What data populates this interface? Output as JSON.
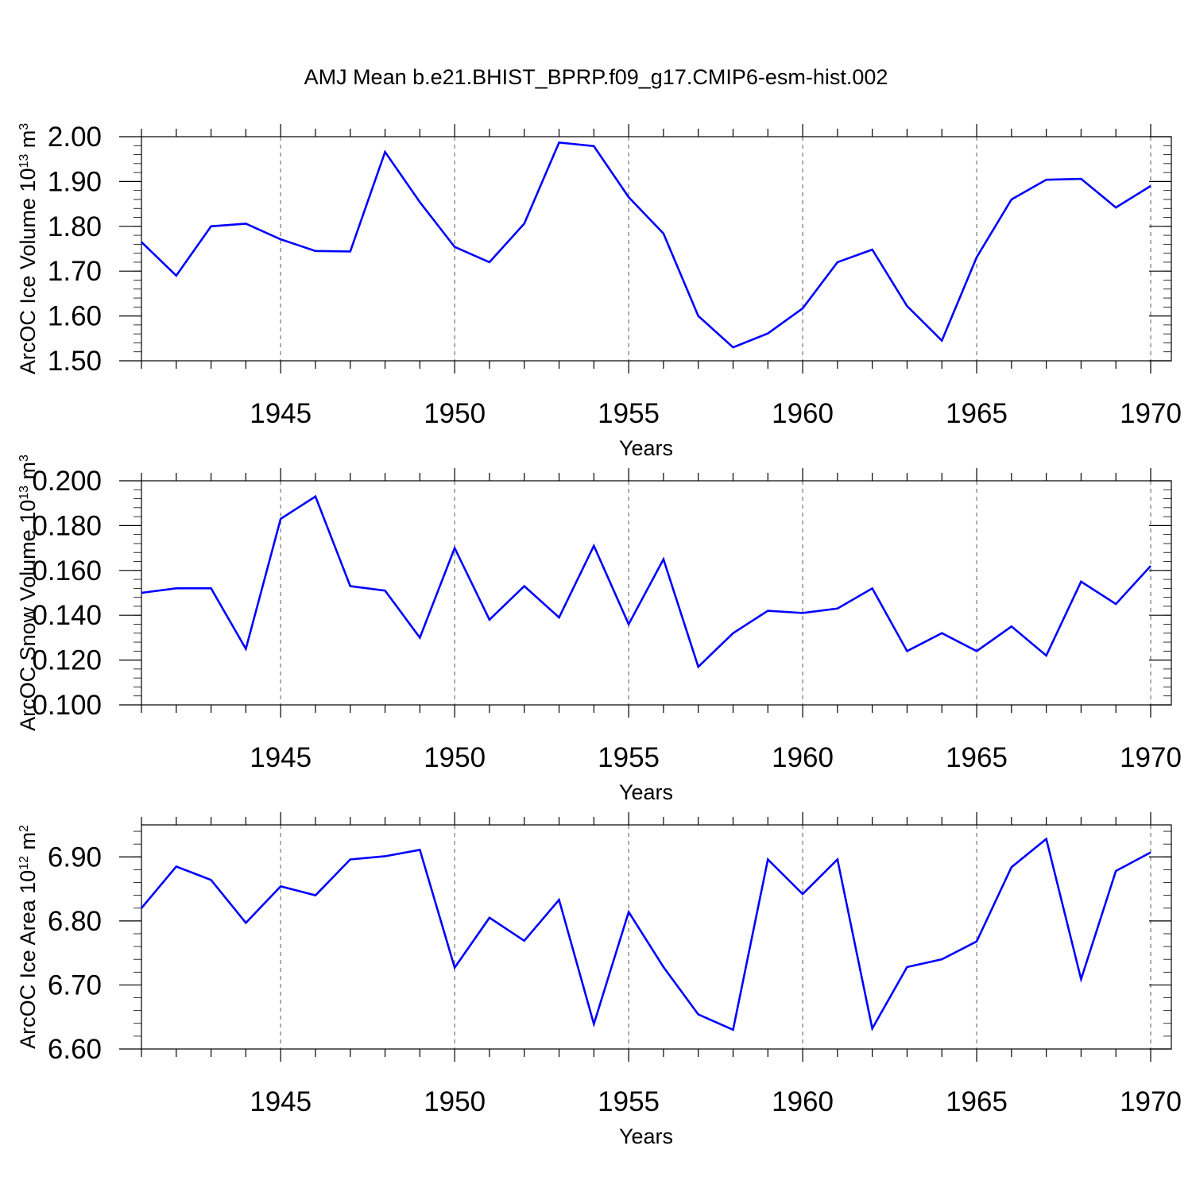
{
  "title": "AMJ Mean b.e21.BHIST_BPRP.f09_g17.CMIP6-esm-hist.002",
  "chart_data": [
    {
      "type": "line",
      "ylabel": "ArcOC Ice Volume 10",
      "ylabel_exp": "13",
      "ylabel_unit": " m",
      "ylabel_unit_exp": "3",
      "xlabel": "Years",
      "xlim": [
        1941,
        1970
      ],
      "ylim": [
        1.5,
        2.0
      ],
      "yticks": [
        "1.50",
        "1.60",
        "1.70",
        "1.80",
        "1.90",
        "2.00"
      ],
      "xticks": [
        "1945",
        "1950",
        "1955",
        "1960",
        "1965",
        "1970"
      ],
      "grid": "vertical dashed at x ticks",
      "color": "#0000ff",
      "x": [
        1941,
        1942,
        1943,
        1944,
        1945,
        1946,
        1947,
        1948,
        1949,
        1950,
        1951,
        1952,
        1953,
        1954,
        1955,
        1956,
        1957,
        1958,
        1959,
        1960,
        1961,
        1962,
        1963,
        1964,
        1965,
        1966,
        1967,
        1968,
        1969,
        1970
      ],
      "y": [
        1.765,
        1.69,
        1.8,
        1.806,
        1.771,
        1.745,
        1.744,
        1.966,
        1.854,
        1.754,
        1.72,
        1.806,
        1.987,
        1.979,
        1.865,
        1.784,
        1.6,
        1.53,
        1.561,
        1.617,
        1.72,
        1.748,
        1.622,
        1.545,
        1.731,
        1.86,
        1.904,
        1.906,
        1.842,
        1.89
      ]
    },
    {
      "type": "line",
      "ylabel": "ArcOC Snow Volume 10",
      "ylabel_exp": "13",
      "ylabel_unit": " m",
      "ylabel_unit_exp": "3",
      "xlabel": "Years",
      "xlim": [
        1941,
        1970
      ],
      "ylim": [
        0.1,
        0.2
      ],
      "yticks": [
        "0.100",
        "0.120",
        "0.140",
        "0.160",
        "0.180",
        "0.200"
      ],
      "xticks": [
        "1945",
        "1950",
        "1955",
        "1960",
        "1965",
        "1970"
      ],
      "grid": "vertical dashed at x ticks",
      "color": "#0000ff",
      "x": [
        1941,
        1942,
        1943,
        1944,
        1945,
        1946,
        1947,
        1948,
        1949,
        1950,
        1951,
        1952,
        1953,
        1954,
        1955,
        1956,
        1957,
        1958,
        1959,
        1960,
        1961,
        1962,
        1963,
        1964,
        1965,
        1966,
        1967,
        1968,
        1969,
        1970
      ],
      "y": [
        0.15,
        0.152,
        0.152,
        0.125,
        0.183,
        0.193,
        0.153,
        0.151,
        0.13,
        0.17,
        0.138,
        0.153,
        0.139,
        0.171,
        0.136,
        0.165,
        0.117,
        0.132,
        0.142,
        0.141,
        0.143,
        0.152,
        0.124,
        0.132,
        0.124,
        0.135,
        0.122,
        0.155,
        0.145,
        0.162
      ]
    },
    {
      "type": "line",
      "ylabel": "ArcOC Ice Area 10",
      "ylabel_exp": "12",
      "ylabel_unit": " m",
      "ylabel_unit_exp": "2",
      "xlabel": "Years",
      "xlim": [
        1941,
        1970
      ],
      "ylim": [
        6.6,
        6.95
      ],
      "yticks": [
        "6.60",
        "6.70",
        "6.80",
        "6.90"
      ],
      "xticks": [
        "1945",
        "1950",
        "1955",
        "1960",
        "1965",
        "1970"
      ],
      "grid": "vertical dashed at x ticks",
      "color": "#0000ff",
      "x": [
        1941,
        1942,
        1943,
        1944,
        1945,
        1946,
        1947,
        1948,
        1949,
        1950,
        1951,
        1952,
        1953,
        1954,
        1955,
        1956,
        1957,
        1958,
        1959,
        1960,
        1961,
        1962,
        1963,
        1964,
        1965,
        1966,
        1967,
        1968,
        1969,
        1970
      ],
      "y": [
        6.82,
        6.885,
        6.864,
        6.797,
        6.854,
        6.84,
        6.896,
        6.901,
        6.911,
        6.727,
        6.805,
        6.769,
        6.833,
        6.639,
        6.814,
        6.728,
        6.654,
        6.63,
        6.896,
        6.842,
        6.896,
        6.632,
        6.728,
        6.74,
        6.768,
        6.884,
        6.928,
        6.709,
        6.878,
        6.907
      ]
    }
  ]
}
